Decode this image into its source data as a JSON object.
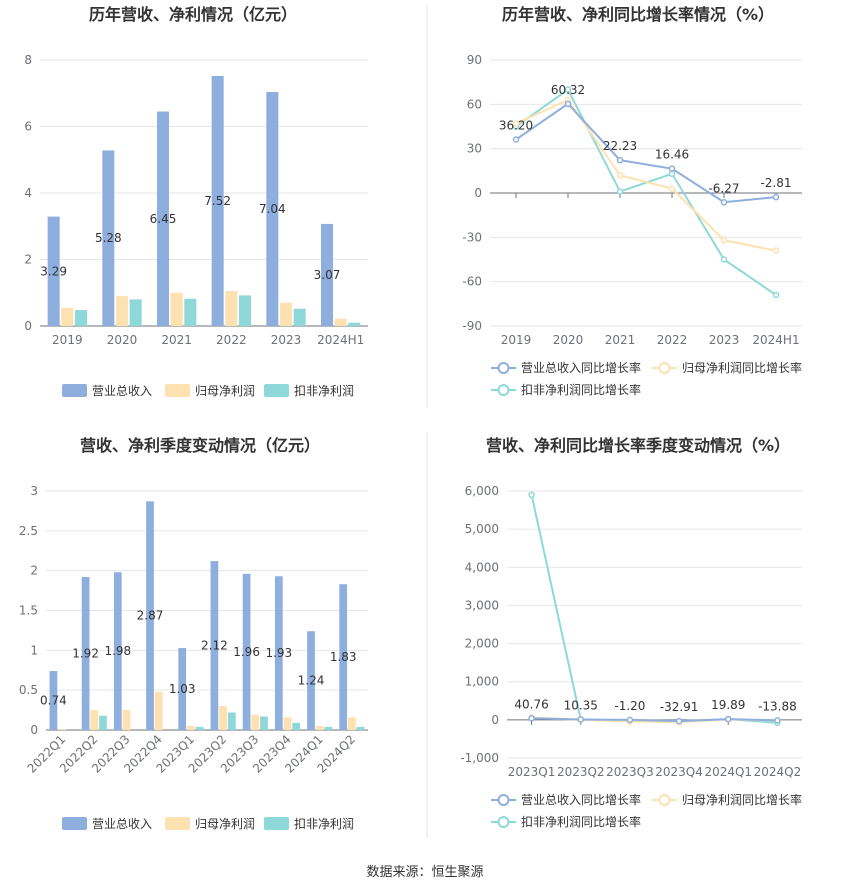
{
  "source": "数据来源：恒生聚源",
  "chart_data": [
    {
      "type": "bar",
      "title": "历年营收、净利情况（亿元）",
      "categories": [
        "2019",
        "2020",
        "2021",
        "2022",
        "2023",
        "2024H1"
      ],
      "ylim": [
        0,
        8
      ],
      "yticks": [
        "0",
        "2",
        "4",
        "6",
        "8"
      ],
      "legend": "bottom",
      "series": [
        {
          "name": "营业总收入",
          "color": "#8eaedd",
          "values": [
            3.29,
            5.28,
            6.45,
            7.52,
            7.04,
            3.07
          ],
          "labels": [
            "3.29",
            "5.28",
            "6.45",
            "7.52",
            "7.04",
            "3.07"
          ]
        },
        {
          "name": "归母净利润",
          "color": "#fde1b0",
          "values": [
            0.55,
            0.9,
            1.0,
            1.05,
            0.7,
            0.22
          ]
        },
        {
          "name": "扣非净利润",
          "color": "#8fd8d9",
          "values": [
            0.48,
            0.8,
            0.82,
            0.92,
            0.52,
            0.1
          ]
        }
      ]
    },
    {
      "type": "line",
      "title": "历年营收、净利同比增长率情况（%）",
      "categories": [
        "2019",
        "2020",
        "2021",
        "2022",
        "2023",
        "2024H1"
      ],
      "ylim": [
        -90,
        90
      ],
      "yticks": [
        "90",
        "60",
        "30",
        "0",
        "-30",
        "-60",
        "-90"
      ],
      "legend": "bottom",
      "series": [
        {
          "name": "营业总收入同比增长率",
          "color": "#8eaedd",
          "values": [
            36.2,
            60.32,
            22.23,
            16.46,
            -6.27,
            -2.81
          ],
          "labels": [
            "36.20",
            "60.32",
            "22.23",
            "16.46",
            "-6.27",
            "-2.81"
          ]
        },
        {
          "name": "归母净利润同比增长率",
          "color": "#fde1b0",
          "values": [
            47,
            63,
            12,
            3,
            -32,
            -39
          ]
        },
        {
          "name": "扣非净利润同比增长率",
          "color": "#8fd8d9",
          "values": [
            45,
            70,
            1,
            13,
            -45,
            -69
          ]
        }
      ]
    },
    {
      "type": "bar",
      "title": "营收、净利季度变动情况（亿元）",
      "categories": [
        "2022Q1",
        "2022Q2",
        "2022Q3",
        "2022Q4",
        "2023Q1",
        "2023Q2",
        "2023Q3",
        "2023Q4",
        "2024Q1",
        "2024Q2"
      ],
      "ylim": [
        0,
        3
      ],
      "yticks": [
        "0",
        "0.5",
        "1",
        "1.5",
        "2",
        "2.5",
        "3"
      ],
      "legend": "bottom",
      "series": [
        {
          "name": "营业总收入",
          "color": "#8eaedd",
          "values": [
            0.74,
            1.92,
            1.98,
            2.87,
            1.03,
            2.12,
            1.96,
            1.93,
            1.24,
            1.83
          ],
          "labels": [
            "0.74",
            "1.92",
            "1.98",
            "2.87",
            "1.03",
            "2.12",
            "1.96",
            "1.93",
            "1.24",
            "1.83"
          ]
        },
        {
          "name": "归母净利润",
          "color": "#fde1b0",
          "values": [
            0.01,
            0.25,
            0.25,
            0.48,
            0.05,
            0.3,
            0.19,
            0.16,
            0.05,
            0.16
          ]
        },
        {
          "name": "扣非净利润",
          "color": "#8fd8d9",
          "values": [
            0.0,
            0.18,
            0.0,
            0.0,
            0.04,
            0.22,
            0.17,
            0.09,
            0.04,
            0.04
          ]
        }
      ]
    },
    {
      "type": "line",
      "title": "营收、净利同比增长率季度变动情况（%）",
      "categories": [
        "2023Q1",
        "2023Q2",
        "2023Q3",
        "2023Q4",
        "2024Q1",
        "2024Q2"
      ],
      "ylim": [
        -1000,
        6000
      ],
      "yticks": [
        "6,000",
        "5,000",
        "4,000",
        "3,000",
        "2,000",
        "1,000",
        "0",
        "-1,000"
      ],
      "legend": "bottom",
      "series": [
        {
          "name": "营业总收入同比增长率",
          "color": "#8eaedd",
          "values": [
            40.76,
            10.35,
            -1.2,
            -32.91,
            19.89,
            -13.88
          ],
          "labels": [
            "40.76",
            "10.35",
            "-1.20",
            "-32.91",
            "19.89",
            "-13.88"
          ]
        },
        {
          "name": "归母净利润同比增长率",
          "color": "#fde1b0",
          "values": [
            60,
            0,
            -40,
            -60,
            10,
            -20
          ]
        },
        {
          "name": "扣非净利润同比增长率",
          "color": "#8fd8d9",
          "values": [
            5900,
            10,
            -20,
            -40,
            20,
            -80
          ]
        }
      ]
    }
  ]
}
